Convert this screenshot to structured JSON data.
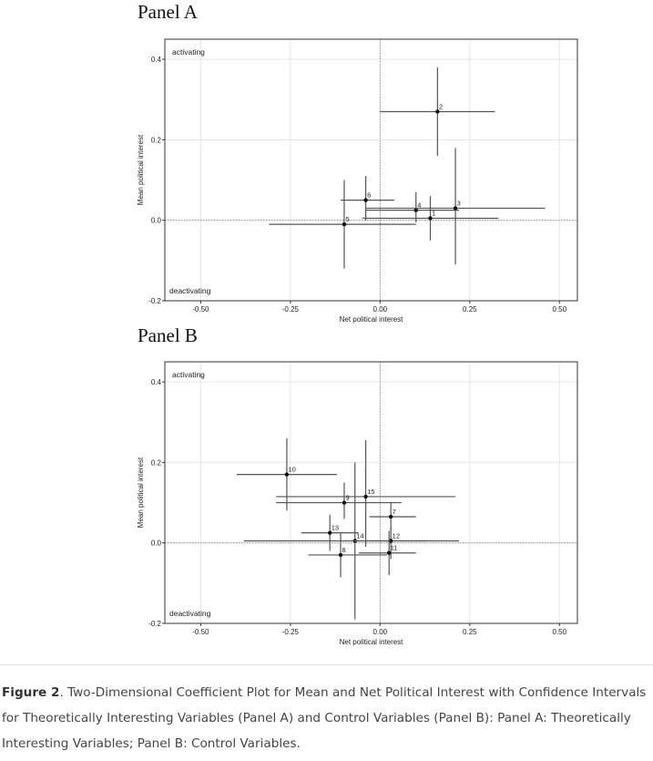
{
  "caption": {
    "label": "Figure 2",
    "text": ". Two-Dimensional Coefficient Plot for Mean and Net Political Interest with Confidence Intervals for Theoretically Interesting Variables (Panel A) and Control Variables (Panel B): Panel A: Theoretically Interesting Variables; Panel B: Control Variables."
  },
  "colors": {
    "interval": "#555555",
    "point": "#111111",
    "grid": "#e6e6e6",
    "refline": "#888888",
    "frame": "#333333"
  },
  "chart_data": [
    {
      "type": "scatter",
      "panel_title": "Panel A",
      "xlabel": "Net political interest",
      "ylabel": "Mean political interest",
      "xlim": [
        -0.6,
        0.55
      ],
      "ylim": [
        -0.2,
        0.45
      ],
      "xticks": [
        "-0.50",
        "-0.25",
        "0.00",
        "0.25",
        "0.50"
      ],
      "yticks": [
        "-0.2",
        "0.0",
        "0.2",
        "0.4"
      ],
      "corner_top": "activating",
      "corner_bottom": "deactivating",
      "grid": true,
      "points": [
        {
          "label": "2",
          "x": 0.16,
          "y": 0.27,
          "x_ci": [
            0.0,
            0.32
          ],
          "y_ci": [
            0.16,
            0.38
          ]
        },
        {
          "label": "6",
          "x": -0.04,
          "y": 0.05,
          "x_ci": [
            -0.11,
            0.04
          ],
          "y_ci": [
            0.0,
            0.11
          ]
        },
        {
          "label": "4",
          "x": 0.1,
          "y": 0.025,
          "x_ci": [
            -0.04,
            0.22
          ],
          "y_ci": [
            -0.005,
            0.07
          ]
        },
        {
          "label": "3",
          "x": 0.21,
          "y": 0.03,
          "x_ci": [
            -0.04,
            0.46
          ],
          "y_ci": [
            -0.11,
            0.18
          ]
        },
        {
          "label": "1",
          "x": 0.14,
          "y": 0.005,
          "x_ci": [
            -0.05,
            0.33
          ],
          "y_ci": [
            -0.05,
            0.06
          ]
        },
        {
          "label": "5",
          "x": -0.1,
          "y": -0.01,
          "x_ci": [
            -0.31,
            0.1
          ],
          "y_ci": [
            -0.12,
            0.1
          ]
        }
      ]
    },
    {
      "type": "scatter",
      "panel_title": "Panel B",
      "xlabel": "Net political interest",
      "ylabel": "Mean political interest",
      "xlim": [
        -0.6,
        0.55
      ],
      "ylim": [
        -0.2,
        0.45
      ],
      "xticks": [
        "-0.50",
        "-0.25",
        "0.00",
        "0.25",
        "0.50"
      ],
      "yticks": [
        "-0.2",
        "0.0",
        "0.2",
        "0.4"
      ],
      "corner_top": "activating",
      "corner_bottom": "deactivating",
      "grid": true,
      "points": [
        {
          "label": "10",
          "x": -0.26,
          "y": 0.17,
          "x_ci": [
            -0.4,
            -0.12
          ],
          "y_ci": [
            0.08,
            0.26
          ]
        },
        {
          "label": "9",
          "x": -0.1,
          "y": 0.1,
          "x_ci": [
            -0.29,
            0.06
          ],
          "y_ci": [
            0.06,
            0.15
          ]
        },
        {
          "label": "15",
          "x": -0.04,
          "y": 0.115,
          "x_ci": [
            -0.29,
            0.21
          ],
          "y_ci": [
            -0.01,
            0.255
          ]
        },
        {
          "label": "7",
          "x": 0.03,
          "y": 0.065,
          "x_ci": [
            -0.03,
            0.1
          ],
          "y_ci": [
            0.03,
            0.1
          ]
        },
        {
          "label": "13",
          "x": -0.14,
          "y": 0.025,
          "x_ci": [
            -0.22,
            -0.06
          ],
          "y_ci": [
            -0.02,
            0.07
          ]
        },
        {
          "label": "14",
          "x": -0.07,
          "y": 0.005,
          "x_ci": [
            -0.38,
            0.22
          ],
          "y_ci": [
            -0.19,
            0.2
          ]
        },
        {
          "label": "12",
          "x": 0.03,
          "y": 0.005,
          "x_ci": [
            -0.08,
            0.13
          ],
          "y_ci": [
            -0.04,
            0.04
          ]
        },
        {
          "label": "11",
          "x": 0.025,
          "y": -0.025,
          "x_ci": [
            -0.06,
            0.1
          ],
          "y_ci": [
            -0.08,
            0.03
          ]
        },
        {
          "label": "8",
          "x": -0.11,
          "y": -0.03,
          "x_ci": [
            -0.2,
            0.02
          ],
          "y_ci": [
            -0.085,
            0.025
          ]
        }
      ]
    }
  ]
}
